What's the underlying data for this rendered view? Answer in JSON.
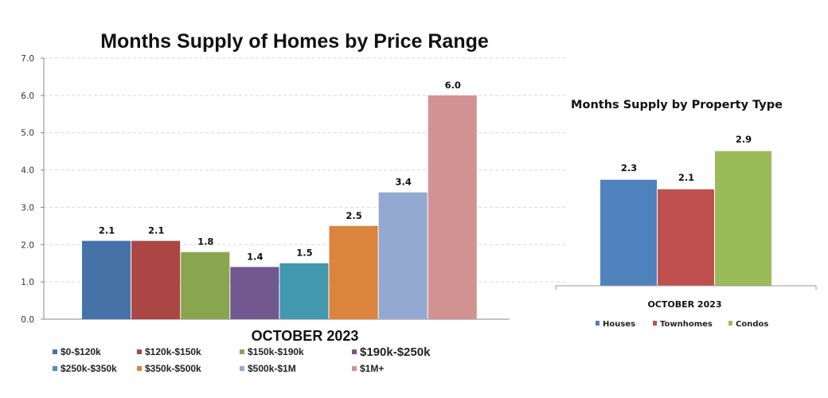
{
  "chart_data": [
    {
      "type": "bar",
      "title": "Months Supply of Homes by Price Range",
      "xlabel": "OCTOBER 2023",
      "ylabel": "",
      "ylim": [
        0,
        7
      ],
      "yticks": [
        "0.0",
        "1.0",
        "2.0",
        "3.0",
        "4.0",
        "5.0",
        "6.0",
        "7.0"
      ],
      "grid": true,
      "legend_position": "bottom",
      "series": [
        {
          "name": "$0-$120k",
          "value": 2.1,
          "label": "2.1",
          "color": "#4572a7"
        },
        {
          "name": "$120k-$150k",
          "value": 2.1,
          "label": "2.1",
          "color": "#aa4643"
        },
        {
          "name": "$150k-$190k",
          "value": 1.8,
          "label": "1.8",
          "color": "#89a54e"
        },
        {
          "name": "$190k-$250k",
          "value": 1.4,
          "label": "1.4",
          "color": "#71588f"
        },
        {
          "name": "$250k-$350k",
          "value": 1.5,
          "label": "1.5",
          "color": "#4198af"
        },
        {
          "name": "$350k-$500k",
          "value": 2.5,
          "label": "2.5",
          "color": "#db843d"
        },
        {
          "name": "$500k-$1M",
          "value": 3.4,
          "label": "3.4",
          "color": "#93a9cf"
        },
        {
          "name": "$1M+",
          "value": 6.0,
          "label": "6.0",
          "color": "#d19392"
        }
      ]
    },
    {
      "type": "bar",
      "title": "Months Supply by Property Type",
      "xlabel": "OCTOBER 2023",
      "ylabel": "",
      "grid": false,
      "legend_position": "bottom",
      "series": [
        {
          "name": "Houses",
          "value": 2.3,
          "label": "2.3",
          "color": "#4f81bd"
        },
        {
          "name": "Townhomes",
          "value": 2.1,
          "label": "2.1",
          "color": "#c0504d"
        },
        {
          "name": "Condos",
          "value": 2.9,
          "label": "2.9",
          "color": "#9bbb59"
        }
      ]
    }
  ]
}
